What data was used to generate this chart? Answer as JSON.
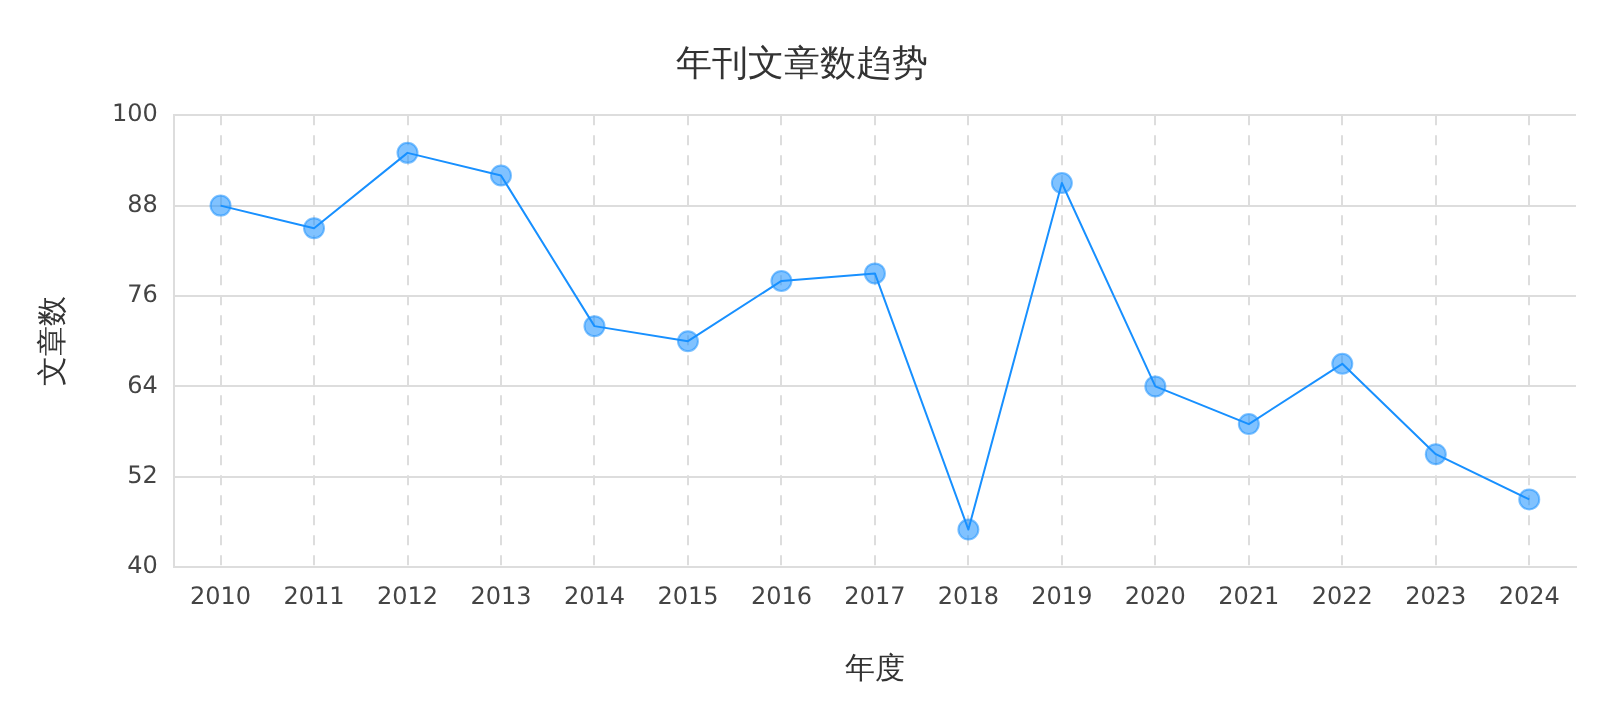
{
  "chart_data": {
    "type": "line",
    "title": "年刊文章数趋势",
    "xlabel": "年度",
    "ylabel": "文章数",
    "categories": [
      "2010",
      "2011",
      "2012",
      "2013",
      "2014",
      "2015",
      "2016",
      "2017",
      "2018",
      "2019",
      "2020",
      "2021",
      "2022",
      "2023",
      "2024"
    ],
    "series": [
      {
        "color": "#1890ff",
        "values": [
          88,
          85,
          95,
          92,
          72,
          70,
          78,
          79,
          45,
          91,
          64,
          59,
          67,
          55,
          49
        ]
      }
    ],
    "ylim": [
      40,
      100
    ],
    "yticks": [
      40,
      52,
      64,
      76,
      88,
      100
    ],
    "grid": true,
    "legend": false,
    "marker": "circle",
    "line_style": "solid"
  }
}
